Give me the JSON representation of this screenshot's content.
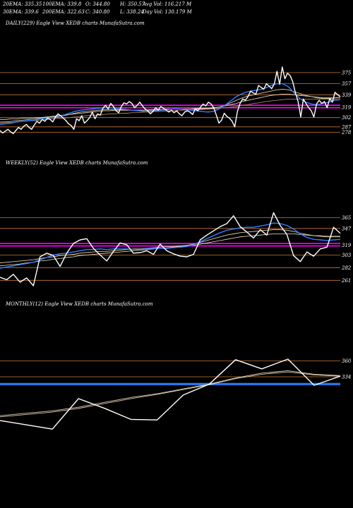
{
  "header": {
    "row1": {
      "ema20": "20EMA: 335.35",
      "ema100": "100EMA: 339.8",
      "open": "O: 344.80",
      "high": "H: 350.57",
      "avg_vol": "Avg Vol: 116.217 M"
    },
    "row2": {
      "ema30": "30EMA: 339.6",
      "ema200": "200EMA: 322.63",
      "close": "C: 340.80",
      "low": "L: 338.24",
      "day_vol": "Day Vol: 130.179 M"
    }
  },
  "colors": {
    "price": "#ffffff",
    "ema_fast": "#2f7fff",
    "ema_slow": "#d8c8a8",
    "ema_slower": "#f0e0c0",
    "ema_slowest": "#b08060",
    "magenta_band": "#ff00ff",
    "level_line": "#c87838",
    "background": "#000000"
  },
  "chart_data": [
    {
      "type": "line",
      "title": "DAILY(229) Eagle  View  XEDB charts MunafaSutra.com",
      "y_ticks": [
        375,
        357,
        339,
        319,
        302,
        287,
        278
      ],
      "ylim": [
        265,
        392
      ],
      "level_lines": [
        375,
        357,
        339,
        302,
        287,
        278
      ],
      "band_levels": [
        322,
        318
      ],
      "series": [
        {
          "role": "price",
          "values": [
            281,
            277,
            280,
            283,
            279,
            276,
            281,
            286,
            283,
            288,
            291,
            286,
            283,
            290,
            296,
            293,
            299,
            296,
            301,
            299,
            295,
            303,
            308,
            305,
            301,
            297,
            292,
            289,
            283,
            300,
            297,
            305,
            293,
            297,
            302,
            311,
            300,
            308,
            306,
            317,
            322,
            316,
            325,
            320,
            313,
            310,
            320,
            326,
            324,
            328,
            325,
            318,
            322,
            327,
            321,
            316,
            313,
            308,
            312,
            318,
            314,
            320,
            317,
            314,
            311,
            314,
            310,
            313,
            308,
            305,
            311,
            313,
            311,
            307,
            316,
            313,
            319,
            324,
            321,
            327,
            324,
            318,
            306,
            293,
            298,
            309,
            304,
            301,
            296,
            287,
            312,
            325,
            332,
            330,
            336,
            345,
            342,
            340,
            354,
            351,
            348,
            357,
            353,
            349,
            357,
            377,
            356,
            384,
            365,
            374,
            370,
            360,
            342,
            328,
            303,
            332,
            325,
            318,
            313,
            303,
            324,
            330,
            325,
            328,
            318,
            333,
            327,
            343,
            339,
            336
          ]
        },
        {
          "role": "ema_fast",
          "values": [
            291,
            292,
            293,
            295,
            296,
            297,
            298,
            300,
            301,
            302,
            303,
            306,
            309,
            312,
            314,
            315,
            316,
            317,
            318,
            318,
            317,
            316,
            315,
            314,
            313,
            312,
            312,
            313,
            314,
            315,
            316,
            316,
            315,
            314,
            313,
            312,
            311,
            312,
            316,
            322,
            329,
            336,
            341,
            344,
            346,
            347,
            350,
            354,
            357,
            357,
            352,
            342,
            333,
            327,
            324,
            323,
            325,
            327,
            330,
            331
          ]
        },
        {
          "role": "ema_slow",
          "values": [
            295,
            295,
            296,
            297,
            298,
            299,
            300,
            301,
            302,
            303,
            304,
            305,
            307,
            309,
            311,
            312,
            313,
            314,
            315,
            315,
            315,
            315,
            315,
            314,
            314,
            314,
            314,
            314,
            315,
            315,
            316,
            316,
            316,
            316,
            316,
            316,
            316,
            317,
            319,
            322,
            326,
            330,
            334,
            337,
            339,
            341,
            343,
            345,
            347,
            348,
            347,
            344,
            341,
            338,
            336,
            334,
            333,
            333,
            334,
            335
          ]
        },
        {
          "role": "ema_slower",
          "values": [
            299,
            299,
            300,
            300,
            301,
            301,
            302,
            302,
            303,
            304,
            305,
            306,
            307,
            308,
            309,
            310,
            311,
            312,
            313,
            313,
            314,
            314,
            314,
            314,
            314,
            314,
            315,
            315,
            315,
            316,
            316,
            316,
            316,
            316,
            317,
            317,
            317,
            318,
            319,
            321,
            323,
            325,
            328,
            330,
            332,
            334,
            336,
            338,
            339,
            340,
            340,
            339,
            338,
            337,
            336,
            335,
            334,
            334,
            334,
            335
          ]
        },
        {
          "role": "ema_slowest",
          "values": [
            293,
            294,
            294,
            295,
            296,
            297,
            297,
            298,
            299,
            300,
            301,
            301,
            302,
            303,
            304,
            305,
            306,
            306,
            307,
            308,
            308,
            309,
            309,
            310,
            310,
            311,
            311,
            312,
            312,
            313,
            313,
            314,
            314,
            314,
            315,
            315,
            316,
            316,
            317,
            318,
            319,
            320,
            322,
            323,
            325,
            326,
            328,
            329,
            330,
            331,
            332,
            332,
            332,
            332,
            332,
            332,
            332,
            332,
            332,
            333
          ]
        }
      ]
    },
    {
      "type": "line",
      "title": "WEEKLY(52) Eagle  View  XEDB charts MunafaSutra.com",
      "y_ticks": [
        365,
        347,
        319,
        303,
        282,
        261
      ],
      "ylim": [
        252,
        390
      ],
      "level_lines": [
        365,
        347,
        303,
        282,
        261
      ],
      "band_levels": [
        322,
        318
      ],
      "series": [
        {
          "role": "price",
          "values": [
            266,
            262,
            271,
            258,
            265,
            252,
            300,
            306,
            302,
            284,
            306,
            322,
            328,
            330,
            314,
            303,
            293,
            309,
            323,
            320,
            306,
            307,
            310,
            304,
            321,
            310,
            305,
            301,
            300,
            304,
            328,
            336,
            343,
            350,
            355,
            368,
            350,
            341,
            331,
            345,
            336,
            373,
            352,
            337,
            302,
            292,
            308,
            301,
            313,
            316,
            349,
            339
          ]
        },
        {
          "role": "ema_fast",
          "values": [
            281,
            283,
            285,
            287,
            289,
            291,
            295,
            299,
            303,
            305,
            306,
            308,
            310,
            312,
            312,
            313,
            312,
            313,
            313,
            313,
            312,
            312,
            313,
            314,
            314,
            314,
            315,
            316,
            317,
            320,
            325,
            330,
            335,
            340,
            344,
            346,
            348,
            349,
            349,
            351,
            353,
            356,
            355,
            352,
            346,
            338,
            332,
            329,
            328,
            327,
            328,
            329
          ]
        },
        {
          "role": "ema_slow",
          "values": [
            290,
            291,
            292,
            293,
            294,
            295,
            297,
            299,
            300,
            302,
            303,
            304,
            306,
            307,
            308,
            309,
            309,
            310,
            311,
            312,
            313,
            313,
            314,
            315,
            316,
            317,
            317,
            318,
            319,
            321,
            324,
            327,
            330,
            333,
            336,
            338,
            340,
            341,
            342,
            343,
            344,
            345,
            345,
            344,
            342,
            339,
            337,
            335,
            334,
            333,
            333,
            333
          ]
        },
        {
          "role": "ema_slower",
          "values": [
            285,
            286,
            287,
            288,
            290,
            291,
            293,
            294,
            296,
            297,
            299,
            300,
            302,
            303,
            304,
            305,
            306,
            307,
            308,
            309,
            310,
            311,
            312,
            313,
            314,
            315,
            316,
            317,
            318,
            319,
            321,
            323,
            325,
            327,
            329,
            331,
            333,
            334,
            335,
            336,
            337,
            338,
            338,
            338,
            338,
            337,
            336,
            335,
            335,
            334,
            334,
            334
          ]
        }
      ]
    },
    {
      "type": "line",
      "title": "MONTHLY(12) Eagle  View  XEDB charts MunafaSutra.com",
      "y_ticks": [
        360,
        334
      ],
      "ylim": [
        225,
        385
      ],
      "level_lines": [
        360,
        334
      ],
      "band_levels": [
        323,
        321
      ],
      "series": [
        {
          "role": "price",
          "values": [
            262,
            255,
            248,
            298,
            282,
            264,
            263,
            304,
            322,
            362,
            347,
            363,
            320,
            335
          ]
        },
        {
          "role": "ema_slow",
          "values": [
            270,
            274,
            278,
            284,
            292,
            300,
            306,
            314,
            322,
            332,
            340,
            344,
            338,
            336
          ]
        },
        {
          "role": "ema_slower",
          "values": [
            268,
            272,
            276,
            282,
            290,
            298,
            305,
            313,
            321,
            331,
            338,
            342,
            337,
            335
          ]
        }
      ]
    }
  ]
}
